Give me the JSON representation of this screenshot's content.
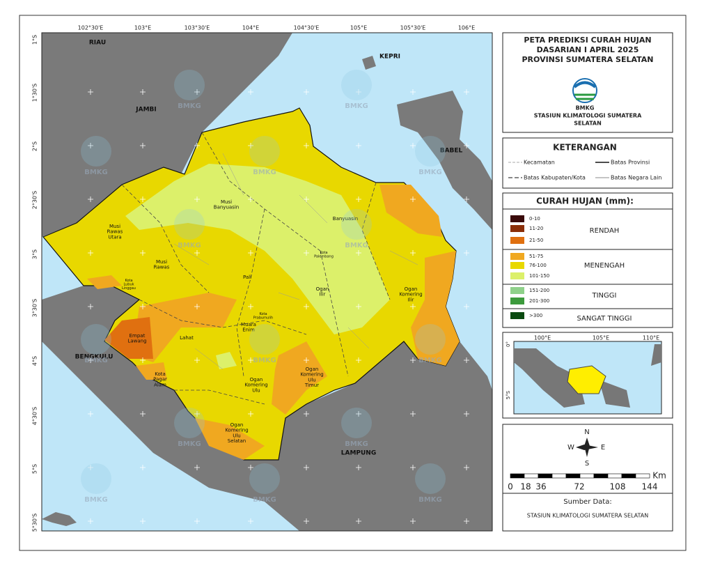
{
  "title": {
    "lines": [
      "PETA PREDIKSI CURAH HUJAN",
      "DASARIAN I APRIL 2025",
      "PROVINSI SUMATERA SELATAN"
    ],
    "logo_text": "BMKG",
    "station_lines": [
      "STASIUN KLIMATOLOGI SUMATERA",
      "SELATAN"
    ]
  },
  "map": {
    "lon_labels": [
      "102°30'E",
      "103°E",
      "103°30'E",
      "104°E",
      "104°30'E",
      "105°E",
      "105°30'E",
      "106°E"
    ],
    "lat_labels": [
      "1°S",
      "1°30'S",
      "2°S",
      "2°30'S",
      "3°S",
      "3°30'S",
      "4°S",
      "4°30'S",
      "5°S",
      "5°30'S"
    ],
    "regions": [
      "RIAU",
      "JAMBI",
      "KEPRI",
      "BABEL",
      "BENGKULU",
      "LAMPUNG"
    ],
    "districts": [
      "Musi Banyuasin",
      "Banyuasin",
      "Musi Rawas Utara",
      "Musi Rawas",
      "Kota Lubuk Linggau",
      "Pali",
      "Kota Palembang",
      "Ogan Ilir",
      "Ogan Komering Ilir",
      "Kota Prabumulih",
      "Muara Enim",
      "Empat Lawang",
      "Lahat",
      "Kota Pagar Alam",
      "Ogan Komering Ulu",
      "Ogan Komering Ulu Timur",
      "Ogan Komering Ulu Selatan"
    ],
    "watermark": "BMKG"
  },
  "keterangan": {
    "title": "KETERANGAN",
    "items": [
      "Kecamatan",
      "Batas Provinsi",
      "Batas Kabupaten/Kota",
      "Batas Negara Lain"
    ]
  },
  "legend": {
    "title": "CURAH HUJAN (mm):",
    "classes": [
      {
        "label": "0-10",
        "color": "#3a0a0a"
      },
      {
        "label": "11-20",
        "color": "#8b2e08"
      },
      {
        "label": "21-50",
        "color": "#e07010"
      },
      {
        "label": "51-75",
        "color": "#f0a820"
      },
      {
        "label": "76-100",
        "color": "#e8d800"
      },
      {
        "label": "101-150",
        "color": "#dcf06a"
      },
      {
        "label": "151-200",
        "color": "#8fd18a"
      },
      {
        "label": "201-300",
        "color": "#3c9a3c"
      },
      {
        "label": ">300",
        "color": "#0a4a10"
      }
    ],
    "groups": [
      "RENDAH",
      "MENENGAH",
      "TINGGI",
      "SANGAT TINGGI"
    ]
  },
  "inset": {
    "lon_labels": [
      "100°E",
      "105°E",
      "110°E"
    ],
    "lat_labels": [
      "0°",
      "5°S"
    ]
  },
  "north_arrow": {
    "n": "N",
    "e": "E",
    "s": "S",
    "w": "W"
  },
  "scale": {
    "labels": [
      "0",
      "18",
      "36",
      "72",
      "108",
      "144"
    ],
    "unit": "Km"
  },
  "source": {
    "title": "Sumber Data:",
    "text": "STASIUN KLIMATOLOGI SUMATERA SELATAN"
  }
}
